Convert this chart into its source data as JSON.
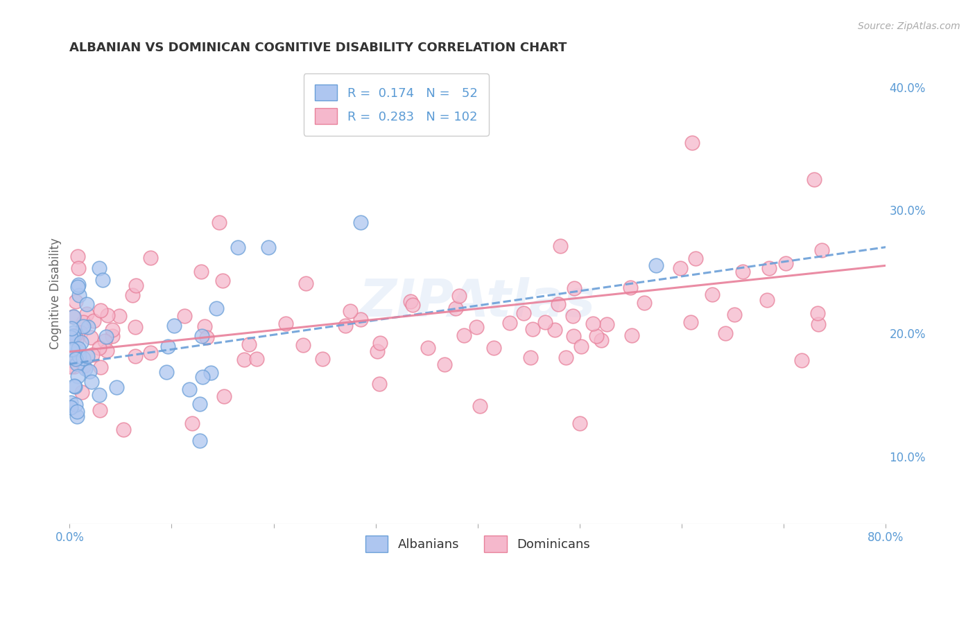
{
  "title": "ALBANIAN VS DOMINICAN COGNITIVE DISABILITY CORRELATION CHART",
  "source": "Source: ZipAtlas.com",
  "ylabel": "Cognitive Disability",
  "xlim": [
    0.0,
    0.8
  ],
  "ylim": [
    0.045,
    0.42
  ],
  "xticks": [
    0.0,
    0.1,
    0.2,
    0.3,
    0.4,
    0.5,
    0.6,
    0.7,
    0.8
  ],
  "xticklabels_edge": [
    "0.0%",
    "",
    "",
    "",
    "",
    "",
    "",
    "",
    "80.0%"
  ],
  "right_yticks": [
    0.1,
    0.2,
    0.3,
    0.4
  ],
  "right_yticklabels": [
    "10.0%",
    "20.0%",
    "30.0%",
    "40.0%"
  ],
  "albanian_color": "#aec6f0",
  "dominican_color": "#f5b8cc",
  "albanian_edge": "#6a9fd8",
  "dominican_edge": "#e8809a",
  "albanian_R": 0.174,
  "albanian_N": 52,
  "dominican_R": 0.283,
  "dominican_N": 102,
  "legend_label_albanian": "Albanians",
  "legend_label_dominican": "Dominicans",
  "watermark": "ZIPAtlas",
  "background_color": "#ffffff",
  "grid_color": "#cccccc",
  "tick_color": "#5b9bd5",
  "title_color": "#333333",
  "legend_text_color": "#5b9bd5",
  "source_color": "#aaaaaa",
  "ylabel_color": "#666666"
}
